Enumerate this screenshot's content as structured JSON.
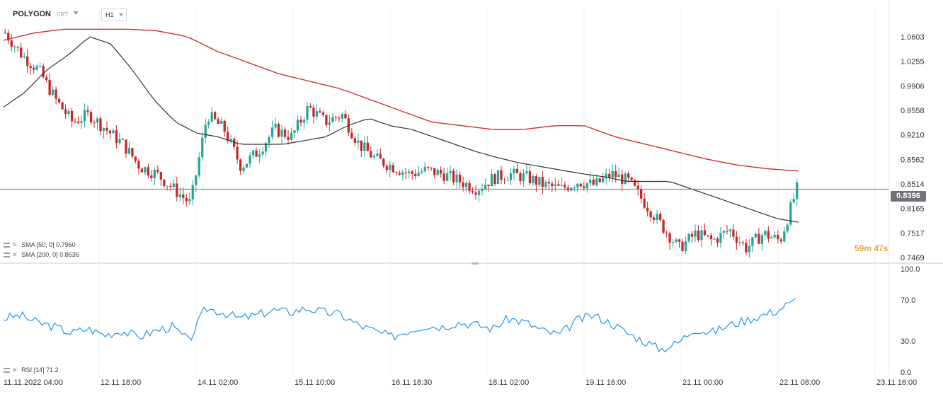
{
  "toolbar": {
    "symbol": "POLYGON",
    "subtitle": "CRT",
    "timeframe": "H1"
  },
  "price_axis": {
    "ticks": [
      "1.0603",
      "1.0255",
      "0.9906",
      "0.9558",
      "0.9210",
      "0.8562",
      "0.8514",
      "0.8165",
      "0.7517",
      "0.7469"
    ]
  },
  "current_price": "0.8396",
  "countdown": "59m 47s",
  "indicators": {
    "sma50": {
      "label": "SMA",
      "params": "[50, 0]",
      "value": "0.7960",
      "color": "#333333"
    },
    "sma200": {
      "label": "SMA",
      "params": "[200, 0]",
      "value": "0.8636",
      "color": "#d32f2f"
    },
    "rsi": {
      "label": "RSI",
      "params": "[14]",
      "value": "71.2",
      "color": "#2196f3"
    }
  },
  "rsi_axis": {
    "ticks": [
      "100.0",
      "70.0",
      "30.0",
      "0.0"
    ]
  },
  "time_axis": {
    "ticks": [
      "11.11.2022  04:00",
      "12.11  18:00",
      "14.11  02:00",
      "15.11  10:00",
      "16.11  18:30",
      "18.11  02:00",
      "19.11  16:00",
      "21.11  00:00",
      "22.11  08:00",
      "23.11  16:00"
    ]
  },
  "colors": {
    "up": "#26a69a",
    "down": "#c62828",
    "sma50": "#333333",
    "sma200": "#d32f2f",
    "rsi": "#2196f3",
    "price_line": "#6f7378"
  },
  "chart_data": {
    "type": "candlestick",
    "timeframe": "H1",
    "price_range": [
      0.74,
      1.08
    ],
    "rsi_range": [
      0,
      100
    ],
    "closes_key": [
      1.05,
      1.02,
      1.0,
      0.96,
      0.93,
      0.94,
      0.92,
      0.9,
      0.87,
      0.86,
      0.84,
      0.82,
      0.94,
      0.92,
      0.87,
      0.89,
      0.92,
      0.91,
      0.95,
      0.93,
      0.94,
      0.9,
      0.88,
      0.87,
      0.86,
      0.865,
      0.86,
      0.85,
      0.84,
      0.855,
      0.86,
      0.855,
      0.845,
      0.84,
      0.85,
      0.845,
      0.86,
      0.85,
      0.82,
      0.79,
      0.76,
      0.78,
      0.77,
      0.785,
      0.76,
      0.78,
      0.77,
      0.84
    ],
    "sma50_key": [
      0.95,
      0.97,
      1.0,
      1.02,
      1.045,
      1.035,
      1.0,
      0.96,
      0.93,
      0.915,
      0.91,
      0.9,
      0.9,
      0.9,
      0.905,
      0.91,
      0.925,
      0.935,
      0.925,
      0.92,
      0.91,
      0.9,
      0.89,
      0.882,
      0.875,
      0.87,
      0.865,
      0.86,
      0.856,
      0.85,
      0.85,
      0.85,
      0.84,
      0.83,
      0.82,
      0.81,
      0.8,
      0.795
    ],
    "sma200_key": [
      1.04,
      1.05,
      1.055,
      1.055,
      1.055,
      1.053,
      1.045,
      1.025,
      1.01,
      0.995,
      0.985,
      0.975,
      0.96,
      0.945,
      0.93,
      0.925,
      0.92,
      0.92,
      0.925,
      0.925,
      0.91,
      0.9,
      0.89,
      0.88,
      0.872,
      0.867,
      0.864
    ],
    "rsi_key": [
      52,
      55,
      48,
      44,
      38,
      42,
      36,
      40,
      34,
      40,
      44,
      30,
      62,
      58,
      52,
      55,
      60,
      58,
      62,
      58,
      56,
      46,
      40,
      34,
      40,
      45,
      44,
      48,
      46,
      42,
      52,
      48,
      40,
      36,
      50,
      55,
      48,
      38,
      30,
      22,
      28,
      42,
      38,
      45,
      50,
      55,
      60,
      71.2
    ]
  }
}
